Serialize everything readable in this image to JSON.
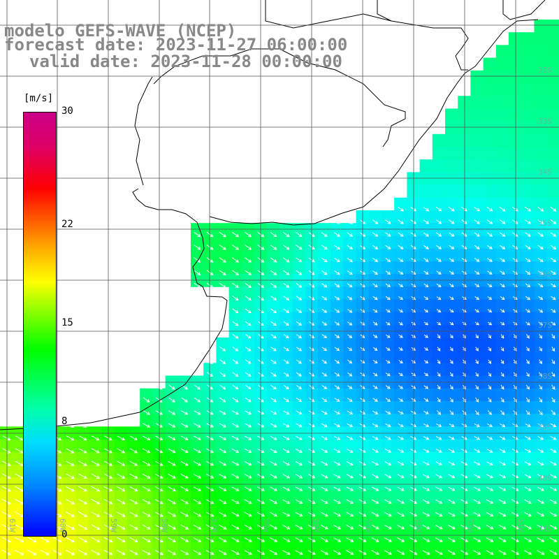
{
  "title": {
    "line1": "modelo GEFS-WAVE (NCEP)",
    "line2": "forecast date: 2023-11-27 06:00:00",
    "line3": "valid date: 2023-11-28 00:00:00"
  },
  "colorbar": {
    "unit": "[m/s]",
    "ticks": [
      {
        "label": "30",
        "value": 30
      },
      {
        "label": "22",
        "value": 22
      },
      {
        "label": "15",
        "value": 15
      },
      {
        "label": "8",
        "value": 8
      },
      {
        "label": "0",
        "value": 0
      }
    ],
    "min": 0,
    "max": 30
  },
  "axes": {
    "lon_labels": [
      "61W",
      "60W",
      "59W",
      "58W",
      "57W",
      "56W",
      "55W",
      "54W",
      "53W",
      "52W",
      "51W"
    ],
    "lat_labels": [
      "32S",
      "33S",
      "34S",
      "35S",
      "36S",
      "37S",
      "38S",
      "39S",
      "40S",
      "41S"
    ]
  },
  "colors": {
    "land": "#ffffff",
    "grid": "#555555",
    "coast": "#000000",
    "vector": "#ffffff",
    "title": "#888888"
  }
}
